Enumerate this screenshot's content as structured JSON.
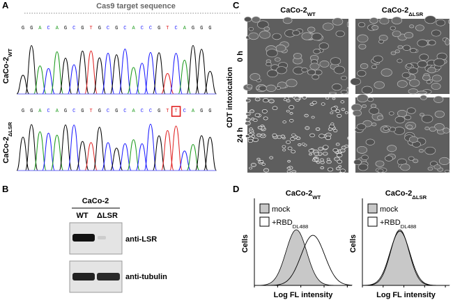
{
  "panel_a": {
    "letter": "A",
    "target_label": "Cas9 target sequence",
    "base_colors": {
      "G": "#000000",
      "A": "#1a9a1a",
      "C": "#1a1aff",
      "T": "#e02020"
    },
    "rows": [
      {
        "label": {
          "main": "CaCo-2",
          "sub": "WT"
        },
        "sequence": [
          "G",
          "G",
          "A",
          "C",
          "A",
          "G",
          "C",
          "G",
          "T",
          "G",
          "C",
          "G",
          "C",
          "A",
          "C",
          "C",
          "G",
          "T",
          "C",
          "A",
          "G",
          "G",
          "G"
        ]
      },
      {
        "label": {
          "main": "CaCo-2",
          "sub": "ΔLSR"
        },
        "sequence": [
          "G",
          "G",
          "A",
          "C",
          "A",
          "G",
          "C",
          "G",
          "T",
          "G",
          "C",
          "G",
          "C",
          "A",
          "C",
          "C",
          "G",
          "T",
          "T",
          "C",
          "A",
          "G",
          "G"
        ]
      }
    ]
  },
  "panel_b": {
    "letter": "B",
    "group": "CaCo-2",
    "lanes": [
      "WT",
      "ΔLSR"
    ],
    "blots": [
      "anti-LSR",
      "anti-tubulin"
    ]
  },
  "panel_c": {
    "letter": "C",
    "columns": [
      {
        "main": "CaCo-2",
        "sub": "WT"
      },
      {
        "main": "CaCo-2",
        "sub": "ΔLSR"
      }
    ],
    "rows": [
      "0 h",
      "24 h"
    ],
    "row_axis": "CDT intoxication"
  },
  "panel_d": {
    "letter": "D",
    "plots": [
      {
        "main": "CaCo-2",
        "sub": "WT"
      },
      {
        "main": "CaCo-2",
        "sub": "ΔLSR"
      }
    ],
    "legend": [
      {
        "main": "mock"
      },
      {
        "main": "+RBD",
        "sub": "DL488"
      }
    ],
    "y_label": "Cells",
    "x_label": "Log FL intensity"
  }
}
